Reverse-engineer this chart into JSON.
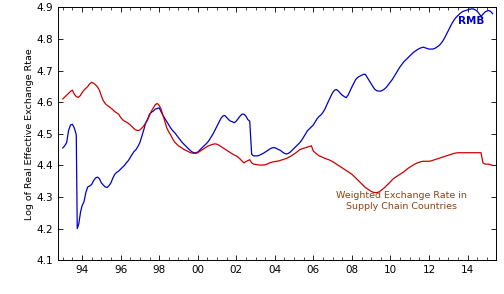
{
  "ylabel": "Log of Real Effective Exchange Rtae",
  "ylim": [
    4.1,
    4.9
  ],
  "yticks": [
    4.1,
    4.2,
    4.3,
    4.4,
    4.5,
    4.6,
    4.7,
    4.8,
    4.9
  ],
  "xlim_start": 1992.75,
  "xlim_end": 2015.5,
  "xtick_positions": [
    1994,
    1996,
    1998,
    2000,
    2002,
    2004,
    2006,
    2008,
    2010,
    2012,
    2014
  ],
  "xtick_labels": [
    "94",
    "96",
    "98",
    "00",
    "02",
    "04",
    "06",
    "08",
    "10",
    "12",
    "14"
  ],
  "rmb_label": "RMB",
  "weighted_label": "Weighted Exchange Rate in\nSupply Chain Countries",
  "line_color_rmb": "#0000cc",
  "line_color_weighted": "#cc0000",
  "label_color_weighted": "#8B4513",
  "background_color": "#ffffff",
  "rmb_data": [
    [
      1993.0,
      4.455
    ],
    [
      1993.1,
      4.462
    ],
    [
      1993.2,
      4.472
    ],
    [
      1993.3,
      4.51
    ],
    [
      1993.4,
      4.528
    ],
    [
      1993.5,
      4.53
    ],
    [
      1993.6,
      4.518
    ],
    [
      1993.7,
      4.497
    ],
    [
      1993.75,
      4.2
    ],
    [
      1993.83,
      4.215
    ],
    [
      1993.92,
      4.252
    ],
    [
      1994.0,
      4.272
    ],
    [
      1994.1,
      4.285
    ],
    [
      1994.2,
      4.315
    ],
    [
      1994.3,
      4.332
    ],
    [
      1994.4,
      4.335
    ],
    [
      1994.5,
      4.34
    ],
    [
      1994.6,
      4.352
    ],
    [
      1994.7,
      4.36
    ],
    [
      1994.8,
      4.363
    ],
    [
      1994.9,
      4.358
    ],
    [
      1995.0,
      4.345
    ],
    [
      1995.1,
      4.338
    ],
    [
      1995.2,
      4.332
    ],
    [
      1995.3,
      4.33
    ],
    [
      1995.4,
      4.336
    ],
    [
      1995.5,
      4.345
    ],
    [
      1995.6,
      4.36
    ],
    [
      1995.7,
      4.372
    ],
    [
      1995.8,
      4.378
    ],
    [
      1995.9,
      4.382
    ],
    [
      1996.0,
      4.388
    ],
    [
      1996.1,
      4.394
    ],
    [
      1996.2,
      4.4
    ],
    [
      1996.3,
      4.408
    ],
    [
      1996.4,
      4.415
    ],
    [
      1996.5,
      4.425
    ],
    [
      1996.6,
      4.435
    ],
    [
      1996.7,
      4.444
    ],
    [
      1996.8,
      4.45
    ],
    [
      1996.9,
      4.46
    ],
    [
      1997.0,
      4.472
    ],
    [
      1997.1,
      4.492
    ],
    [
      1997.2,
      4.512
    ],
    [
      1997.3,
      4.534
    ],
    [
      1997.4,
      4.546
    ],
    [
      1997.5,
      4.562
    ],
    [
      1997.6,
      4.568
    ],
    [
      1997.7,
      4.572
    ],
    [
      1997.8,
      4.578
    ],
    [
      1997.9,
      4.58
    ],
    [
      1998.0,
      4.582
    ],
    [
      1998.1,
      4.57
    ],
    [
      1998.2,
      4.558
    ],
    [
      1998.3,
      4.548
    ],
    [
      1998.4,
      4.538
    ],
    [
      1998.5,
      4.528
    ],
    [
      1998.6,
      4.518
    ],
    [
      1998.7,
      4.51
    ],
    [
      1998.8,
      4.504
    ],
    [
      1998.9,
      4.496
    ],
    [
      1999.0,
      4.488
    ],
    [
      1999.1,
      4.48
    ],
    [
      1999.2,
      4.472
    ],
    [
      1999.3,
      4.466
    ],
    [
      1999.4,
      4.46
    ],
    [
      1999.5,
      4.454
    ],
    [
      1999.6,
      4.448
    ],
    [
      1999.7,
      4.443
    ],
    [
      1999.8,
      4.44
    ],
    [
      1999.9,
      4.44
    ],
    [
      2000.0,
      4.442
    ],
    [
      2000.1,
      4.448
    ],
    [
      2000.2,
      4.454
    ],
    [
      2000.3,
      4.46
    ],
    [
      2000.4,
      4.466
    ],
    [
      2000.5,
      4.472
    ],
    [
      2000.6,
      4.48
    ],
    [
      2000.7,
      4.49
    ],
    [
      2000.8,
      4.5
    ],
    [
      2000.9,
      4.512
    ],
    [
      2001.0,
      4.524
    ],
    [
      2001.1,
      4.536
    ],
    [
      2001.2,
      4.548
    ],
    [
      2001.3,
      4.556
    ],
    [
      2001.4,
      4.558
    ],
    [
      2001.5,
      4.552
    ],
    [
      2001.6,
      4.545
    ],
    [
      2001.7,
      4.54
    ],
    [
      2001.8,
      4.538
    ],
    [
      2001.9,
      4.535
    ],
    [
      2002.0,
      4.54
    ],
    [
      2002.1,
      4.548
    ],
    [
      2002.2,
      4.556
    ],
    [
      2002.3,
      4.562
    ],
    [
      2002.4,
      4.562
    ],
    [
      2002.5,
      4.556
    ],
    [
      2002.6,
      4.545
    ],
    [
      2002.7,
      4.54
    ],
    [
      2002.8,
      4.435
    ],
    [
      2002.9,
      4.43
    ],
    [
      2003.0,
      4.43
    ],
    [
      2003.1,
      4.43
    ],
    [
      2003.2,
      4.432
    ],
    [
      2003.3,
      4.435
    ],
    [
      2003.4,
      4.438
    ],
    [
      2003.5,
      4.442
    ],
    [
      2003.6,
      4.446
    ],
    [
      2003.7,
      4.45
    ],
    [
      2003.8,
      4.454
    ],
    [
      2003.9,
      4.456
    ],
    [
      2004.0,
      4.456
    ],
    [
      2004.1,
      4.453
    ],
    [
      2004.2,
      4.45
    ],
    [
      2004.3,
      4.447
    ],
    [
      2004.4,
      4.442
    ],
    [
      2004.5,
      4.438
    ],
    [
      2004.6,
      4.436
    ],
    [
      2004.7,
      4.438
    ],
    [
      2004.8,
      4.442
    ],
    [
      2004.9,
      4.448
    ],
    [
      2005.0,
      4.454
    ],
    [
      2005.1,
      4.46
    ],
    [
      2005.2,
      4.466
    ],
    [
      2005.3,
      4.472
    ],
    [
      2005.4,
      4.48
    ],
    [
      2005.5,
      4.49
    ],
    [
      2005.6,
      4.5
    ],
    [
      2005.7,
      4.51
    ],
    [
      2005.8,
      4.516
    ],
    [
      2005.9,
      4.522
    ],
    [
      2006.0,
      4.528
    ],
    [
      2006.1,
      4.538
    ],
    [
      2006.2,
      4.548
    ],
    [
      2006.3,
      4.555
    ],
    [
      2006.4,
      4.56
    ],
    [
      2006.5,
      4.568
    ],
    [
      2006.6,
      4.578
    ],
    [
      2006.7,
      4.592
    ],
    [
      2006.8,
      4.605
    ],
    [
      2006.9,
      4.618
    ],
    [
      2007.0,
      4.63
    ],
    [
      2007.1,
      4.638
    ],
    [
      2007.2,
      4.64
    ],
    [
      2007.3,
      4.635
    ],
    [
      2007.4,
      4.628
    ],
    [
      2007.5,
      4.622
    ],
    [
      2007.6,
      4.618
    ],
    [
      2007.7,
      4.614
    ],
    [
      2007.8,
      4.622
    ],
    [
      2007.9,
      4.635
    ],
    [
      2008.0,
      4.648
    ],
    [
      2008.1,
      4.66
    ],
    [
      2008.2,
      4.672
    ],
    [
      2008.3,
      4.678
    ],
    [
      2008.4,
      4.682
    ],
    [
      2008.5,
      4.685
    ],
    [
      2008.6,
      4.688
    ],
    [
      2008.7,
      4.688
    ],
    [
      2008.8,
      4.678
    ],
    [
      2008.9,
      4.668
    ],
    [
      2009.0,
      4.658
    ],
    [
      2009.1,
      4.648
    ],
    [
      2009.2,
      4.64
    ],
    [
      2009.3,
      4.636
    ],
    [
      2009.4,
      4.635
    ],
    [
      2009.5,
      4.635
    ],
    [
      2009.6,
      4.638
    ],
    [
      2009.7,
      4.642
    ],
    [
      2009.8,
      4.648
    ],
    [
      2009.9,
      4.656
    ],
    [
      2010.0,
      4.664
    ],
    [
      2010.1,
      4.672
    ],
    [
      2010.2,
      4.682
    ],
    [
      2010.3,
      4.692
    ],
    [
      2010.4,
      4.702
    ],
    [
      2010.5,
      4.712
    ],
    [
      2010.6,
      4.72
    ],
    [
      2010.7,
      4.728
    ],
    [
      2010.8,
      4.734
    ],
    [
      2010.9,
      4.74
    ],
    [
      2011.0,
      4.746
    ],
    [
      2011.1,
      4.752
    ],
    [
      2011.2,
      4.758
    ],
    [
      2011.3,
      4.762
    ],
    [
      2011.4,
      4.766
    ],
    [
      2011.5,
      4.77
    ],
    [
      2011.6,
      4.772
    ],
    [
      2011.7,
      4.774
    ],
    [
      2011.8,
      4.772
    ],
    [
      2011.9,
      4.77
    ],
    [
      2012.0,
      4.768
    ],
    [
      2012.1,
      4.768
    ],
    [
      2012.2,
      4.768
    ],
    [
      2012.3,
      4.77
    ],
    [
      2012.4,
      4.774
    ],
    [
      2012.5,
      4.778
    ],
    [
      2012.6,
      4.784
    ],
    [
      2012.7,
      4.792
    ],
    [
      2012.8,
      4.802
    ],
    [
      2012.9,
      4.814
    ],
    [
      2013.0,
      4.826
    ],
    [
      2013.1,
      4.838
    ],
    [
      2013.2,
      4.85
    ],
    [
      2013.3,
      4.86
    ],
    [
      2013.4,
      4.868
    ],
    [
      2013.5,
      4.874
    ],
    [
      2013.6,
      4.88
    ],
    [
      2013.7,
      4.885
    ],
    [
      2013.8,
      4.888
    ],
    [
      2013.9,
      4.89
    ],
    [
      2014.0,
      4.892
    ],
    [
      2014.1,
      4.894
    ],
    [
      2014.2,
      4.895
    ],
    [
      2014.3,
      4.895
    ],
    [
      2014.4,
      4.892
    ],
    [
      2014.5,
      4.888
    ],
    [
      2014.6,
      4.88
    ],
    [
      2014.7,
      4.872
    ],
    [
      2014.8,
      4.878
    ],
    [
      2014.9,
      4.885
    ],
    [
      2015.0,
      4.888
    ],
    [
      2015.1,
      4.89
    ],
    [
      2015.2,
      4.887
    ],
    [
      2015.3,
      4.88
    ]
  ],
  "weighted_data": [
    [
      1993.0,
      4.61
    ],
    [
      1993.1,
      4.616
    ],
    [
      1993.2,
      4.622
    ],
    [
      1993.3,
      4.628
    ],
    [
      1993.4,
      4.634
    ],
    [
      1993.5,
      4.638
    ],
    [
      1993.6,
      4.625
    ],
    [
      1993.7,
      4.618
    ],
    [
      1993.8,
      4.615
    ],
    [
      1993.9,
      4.62
    ],
    [
      1994.0,
      4.63
    ],
    [
      1994.1,
      4.638
    ],
    [
      1994.2,
      4.644
    ],
    [
      1994.3,
      4.65
    ],
    [
      1994.4,
      4.658
    ],
    [
      1994.5,
      4.663
    ],
    [
      1994.6,
      4.66
    ],
    [
      1994.7,
      4.655
    ],
    [
      1994.8,
      4.648
    ],
    [
      1994.9,
      4.638
    ],
    [
      1995.0,
      4.62
    ],
    [
      1995.1,
      4.605
    ],
    [
      1995.2,
      4.596
    ],
    [
      1995.3,
      4.59
    ],
    [
      1995.4,
      4.586
    ],
    [
      1995.5,
      4.581
    ],
    [
      1995.6,
      4.576
    ],
    [
      1995.7,
      4.57
    ],
    [
      1995.8,
      4.566
    ],
    [
      1995.9,
      4.562
    ],
    [
      1996.0,
      4.552
    ],
    [
      1996.1,
      4.545
    ],
    [
      1996.2,
      4.54
    ],
    [
      1996.3,
      4.537
    ],
    [
      1996.4,
      4.533
    ],
    [
      1996.5,
      4.528
    ],
    [
      1996.6,
      4.522
    ],
    [
      1996.7,
      4.516
    ],
    [
      1996.8,
      4.512
    ],
    [
      1996.9,
      4.51
    ],
    [
      1997.0,
      4.512
    ],
    [
      1997.1,
      4.518
    ],
    [
      1997.2,
      4.525
    ],
    [
      1997.3,
      4.534
    ],
    [
      1997.4,
      4.544
    ],
    [
      1997.5,
      4.558
    ],
    [
      1997.6,
      4.572
    ],
    [
      1997.7,
      4.582
    ],
    [
      1997.8,
      4.592
    ],
    [
      1997.9,
      4.596
    ],
    [
      1998.0,
      4.59
    ],
    [
      1998.1,
      4.578
    ],
    [
      1998.2,
      4.558
    ],
    [
      1998.3,
      4.538
    ],
    [
      1998.4,
      4.518
    ],
    [
      1998.5,
      4.506
    ],
    [
      1998.6,
      4.496
    ],
    [
      1998.7,
      4.484
    ],
    [
      1998.8,
      4.474
    ],
    [
      1998.9,
      4.468
    ],
    [
      1999.0,
      4.462
    ],
    [
      1999.1,
      4.458
    ],
    [
      1999.2,
      4.454
    ],
    [
      1999.3,
      4.45
    ],
    [
      1999.4,
      4.447
    ],
    [
      1999.5,
      4.444
    ],
    [
      1999.6,
      4.441
    ],
    [
      1999.7,
      4.439
    ],
    [
      1999.8,
      4.438
    ],
    [
      1999.9,
      4.438
    ],
    [
      2000.0,
      4.44
    ],
    [
      2000.1,
      4.444
    ],
    [
      2000.2,
      4.448
    ],
    [
      2000.3,
      4.452
    ],
    [
      2000.4,
      4.456
    ],
    [
      2000.5,
      4.46
    ],
    [
      2000.6,
      4.463
    ],
    [
      2000.7,
      4.465
    ],
    [
      2000.8,
      4.467
    ],
    [
      2000.9,
      4.468
    ],
    [
      2001.0,
      4.467
    ],
    [
      2001.1,
      4.464
    ],
    [
      2001.2,
      4.46
    ],
    [
      2001.3,
      4.456
    ],
    [
      2001.4,
      4.452
    ],
    [
      2001.5,
      4.448
    ],
    [
      2001.6,
      4.444
    ],
    [
      2001.7,
      4.44
    ],
    [
      2001.8,
      4.436
    ],
    [
      2001.9,
      4.433
    ],
    [
      2002.0,
      4.43
    ],
    [
      2002.1,
      4.426
    ],
    [
      2002.2,
      4.42
    ],
    [
      2002.3,
      4.414
    ],
    [
      2002.4,
      4.408
    ],
    [
      2002.5,
      4.412
    ],
    [
      2002.6,
      4.415
    ],
    [
      2002.7,
      4.418
    ],
    [
      2002.8,
      4.408
    ],
    [
      2002.9,
      4.404
    ],
    [
      2003.0,
      4.403
    ],
    [
      2003.1,
      4.402
    ],
    [
      2003.2,
      4.401
    ],
    [
      2003.3,
      4.401
    ],
    [
      2003.4,
      4.401
    ],
    [
      2003.5,
      4.402
    ],
    [
      2003.6,
      4.404
    ],
    [
      2003.7,
      4.407
    ],
    [
      2003.8,
      4.409
    ],
    [
      2003.9,
      4.411
    ],
    [
      2004.0,
      4.412
    ],
    [
      2004.1,
      4.413
    ],
    [
      2004.2,
      4.414
    ],
    [
      2004.3,
      4.416
    ],
    [
      2004.4,
      4.418
    ],
    [
      2004.5,
      4.42
    ],
    [
      2004.6,
      4.422
    ],
    [
      2004.7,
      4.425
    ],
    [
      2004.8,
      4.428
    ],
    [
      2004.9,
      4.432
    ],
    [
      2005.0,
      4.436
    ],
    [
      2005.1,
      4.44
    ],
    [
      2005.2,
      4.445
    ],
    [
      2005.3,
      4.45
    ],
    [
      2005.4,
      4.452
    ],
    [
      2005.5,
      4.454
    ],
    [
      2005.6,
      4.456
    ],
    [
      2005.7,
      4.458
    ],
    [
      2005.8,
      4.46
    ],
    [
      2005.9,
      4.462
    ],
    [
      2006.0,
      4.445
    ],
    [
      2006.1,
      4.44
    ],
    [
      2006.2,
      4.435
    ],
    [
      2006.3,
      4.43
    ],
    [
      2006.4,
      4.428
    ],
    [
      2006.5,
      4.425
    ],
    [
      2006.6,
      4.422
    ],
    [
      2006.7,
      4.42
    ],
    [
      2006.8,
      4.418
    ],
    [
      2006.9,
      4.415
    ],
    [
      2007.0,
      4.412
    ],
    [
      2007.1,
      4.408
    ],
    [
      2007.2,
      4.404
    ],
    [
      2007.3,
      4.4
    ],
    [
      2007.4,
      4.396
    ],
    [
      2007.5,
      4.392
    ],
    [
      2007.6,
      4.388
    ],
    [
      2007.7,
      4.384
    ],
    [
      2007.8,
      4.38
    ],
    [
      2007.9,
      4.376
    ],
    [
      2008.0,
      4.372
    ],
    [
      2008.1,
      4.366
    ],
    [
      2008.2,
      4.36
    ],
    [
      2008.3,
      4.354
    ],
    [
      2008.4,
      4.348
    ],
    [
      2008.5,
      4.342
    ],
    [
      2008.6,
      4.336
    ],
    [
      2008.7,
      4.33
    ],
    [
      2008.8,
      4.326
    ],
    [
      2008.9,
      4.322
    ],
    [
      2009.0,
      4.318
    ],
    [
      2009.1,
      4.315
    ],
    [
      2009.2,
      4.314
    ],
    [
      2009.3,
      4.314
    ],
    [
      2009.4,
      4.316
    ],
    [
      2009.5,
      4.32
    ],
    [
      2009.6,
      4.325
    ],
    [
      2009.7,
      4.33
    ],
    [
      2009.8,
      4.336
    ],
    [
      2009.9,
      4.342
    ],
    [
      2010.0,
      4.348
    ],
    [
      2010.1,
      4.355
    ],
    [
      2010.2,
      4.36
    ],
    [
      2010.3,
      4.364
    ],
    [
      2010.4,
      4.368
    ],
    [
      2010.5,
      4.372
    ],
    [
      2010.6,
      4.376
    ],
    [
      2010.7,
      4.38
    ],
    [
      2010.8,
      4.385
    ],
    [
      2010.9,
      4.39
    ],
    [
      2011.0,
      4.394
    ],
    [
      2011.1,
      4.398
    ],
    [
      2011.2,
      4.402
    ],
    [
      2011.3,
      4.405
    ],
    [
      2011.4,
      4.408
    ],
    [
      2011.5,
      4.41
    ],
    [
      2011.6,
      4.412
    ],
    [
      2011.7,
      4.413
    ],
    [
      2011.8,
      4.413
    ],
    [
      2011.9,
      4.413
    ],
    [
      2012.0,
      4.413
    ],
    [
      2012.1,
      4.414
    ],
    [
      2012.2,
      4.416
    ],
    [
      2012.3,
      4.418
    ],
    [
      2012.4,
      4.42
    ],
    [
      2012.5,
      4.422
    ],
    [
      2012.6,
      4.424
    ],
    [
      2012.7,
      4.426
    ],
    [
      2012.8,
      4.428
    ],
    [
      2012.9,
      4.43
    ],
    [
      2013.0,
      4.432
    ],
    [
      2013.1,
      4.434
    ],
    [
      2013.2,
      4.436
    ],
    [
      2013.3,
      4.438
    ],
    [
      2013.4,
      4.439
    ],
    [
      2013.5,
      4.44
    ],
    [
      2013.6,
      4.44
    ],
    [
      2013.7,
      4.44
    ],
    [
      2013.8,
      4.44
    ],
    [
      2013.9,
      4.44
    ],
    [
      2014.0,
      4.44
    ],
    [
      2014.1,
      4.44
    ],
    [
      2014.2,
      4.44
    ],
    [
      2014.3,
      4.44
    ],
    [
      2014.4,
      4.44
    ],
    [
      2014.5,
      4.44
    ],
    [
      2014.6,
      4.44
    ],
    [
      2014.7,
      4.44
    ],
    [
      2014.8,
      4.408
    ],
    [
      2014.9,
      4.404
    ],
    [
      2015.0,
      4.404
    ],
    [
      2015.1,
      4.404
    ],
    [
      2015.2,
      4.402
    ],
    [
      2015.3,
      4.4
    ]
  ]
}
